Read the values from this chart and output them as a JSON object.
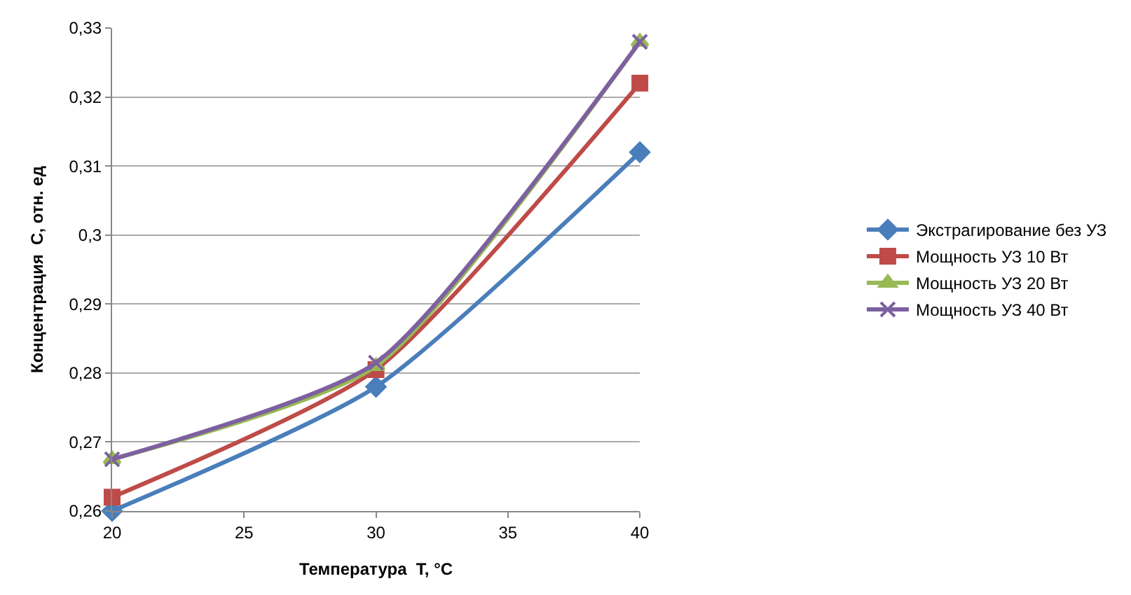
{
  "chart_data": {
    "type": "line",
    "xlabel": "Температура  T, °C",
    "ylabel": "Концентрация  C, отн. ед",
    "x": [
      20,
      30,
      40
    ],
    "series": [
      {
        "name": "Экстрагирование без УЗ",
        "color": "#4a7ebb",
        "marker": "diamond",
        "values": [
          0.26,
          0.278,
          0.312
        ]
      },
      {
        "name": "Мощность УЗ 10 Вт",
        "color": "#be4b48",
        "marker": "square",
        "values": [
          0.262,
          0.2805,
          0.322
        ]
      },
      {
        "name": "Мощность УЗ 20 Вт",
        "color": "#98b954",
        "marker": "triangle",
        "values": [
          0.2675,
          0.281,
          0.328
        ]
      },
      {
        "name": "Мощность УЗ 40 Вт",
        "color": "#7d60a0",
        "marker": "cross",
        "values": [
          0.2675,
          0.2815,
          0.328
        ]
      }
    ],
    "xlim": [
      20,
      40
    ],
    "xticks": [
      20,
      25,
      30,
      35,
      40
    ],
    "ylim": [
      0.26,
      0.33
    ],
    "yticks": [
      {
        "value": 0.26,
        "label": "0,26"
      },
      {
        "value": 0.27,
        "label": "0,27"
      },
      {
        "value": 0.28,
        "label": "0,28"
      },
      {
        "value": 0.29,
        "label": "0,29"
      },
      {
        "value": 0.3,
        "label": "0,3"
      },
      {
        "value": 0.31,
        "label": "0,31"
      },
      {
        "value": 0.32,
        "label": "0,32"
      },
      {
        "value": 0.33,
        "label": "0,33"
      }
    ],
    "grid": "y",
    "legend": "right",
    "line_style": "solid"
  }
}
